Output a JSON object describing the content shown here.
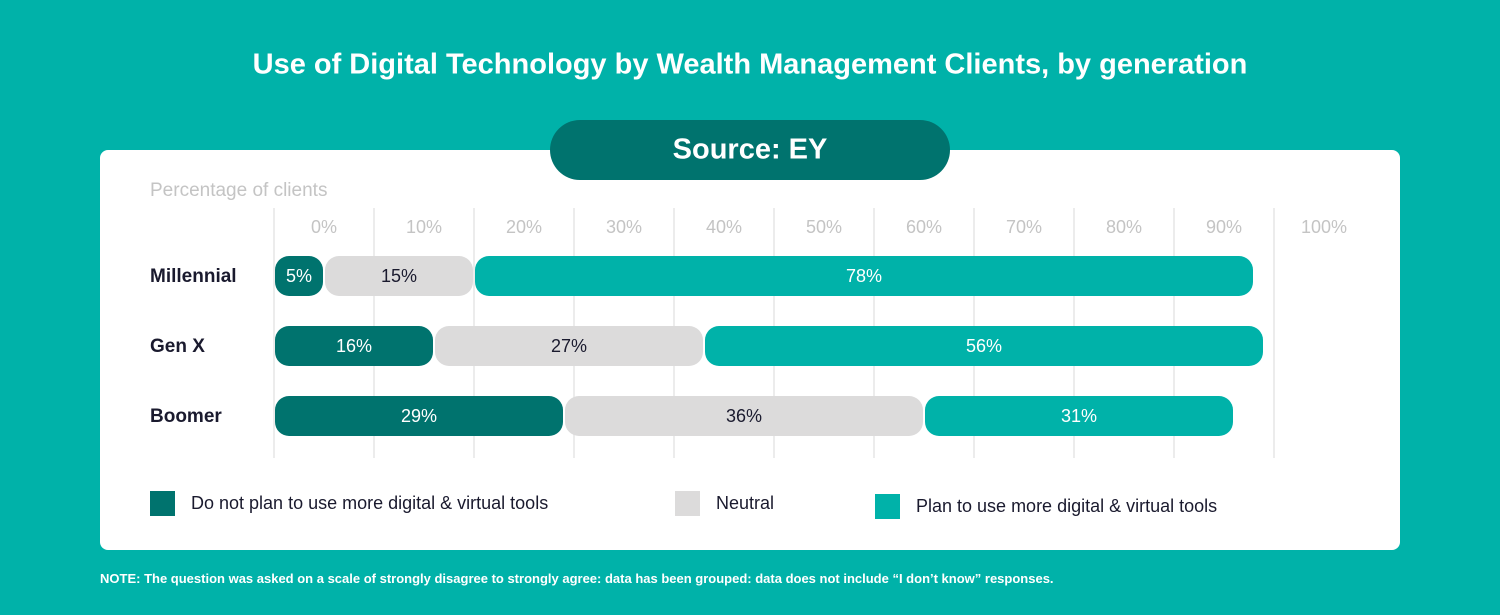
{
  "chart_data": {
    "type": "stacked_bar_horizontal",
    "title": "Use of Digital Technology by Wealth Management Clients, by generation",
    "source": "Source: EY",
    "x_label": "Percentage of clients",
    "categories": [
      "Millennial",
      "Gen X",
      "Boomer"
    ],
    "series": [
      {
        "name": "Do not plan to use more digital & virtual tools",
        "color": "#00736e",
        "values": [
          5,
          16,
          29
        ],
        "value_labels": [
          "5%",
          "16%",
          "29%"
        ]
      },
      {
        "name": "Neutral",
        "color": "#dcdbdb",
        "values": [
          15,
          27,
          36
        ],
        "value_labels": [
          "15%",
          "27%",
          "36%"
        ]
      },
      {
        "name": "Plan to use more digital & virtual tools",
        "color": "#00b2a9",
        "values": [
          78,
          56,
          31
        ],
        "value_labels": [
          "78%",
          "56%",
          "31%"
        ]
      }
    ],
    "xlim": [
      0,
      100
    ],
    "xticks": [
      {
        "value": 0,
        "label": "0%"
      },
      {
        "value": 10,
        "label": "10%"
      },
      {
        "value": 20,
        "label": "20%"
      },
      {
        "value": 30,
        "label": "30%"
      },
      {
        "value": 40,
        "label": "40%"
      },
      {
        "value": 50,
        "label": "50%"
      },
      {
        "value": 60,
        "label": "60%"
      },
      {
        "value": 70,
        "label": "70%"
      },
      {
        "value": 80,
        "label": "80%"
      },
      {
        "value": 90,
        "label": "90%"
      },
      {
        "value": 100,
        "label": "100%"
      }
    ],
    "grid": true,
    "note_label": "NOTE:",
    "note": "The question was asked on a scale of strongly disagree to strongly agree: data has been grouped: data does not include  “I don’t know” responses."
  }
}
